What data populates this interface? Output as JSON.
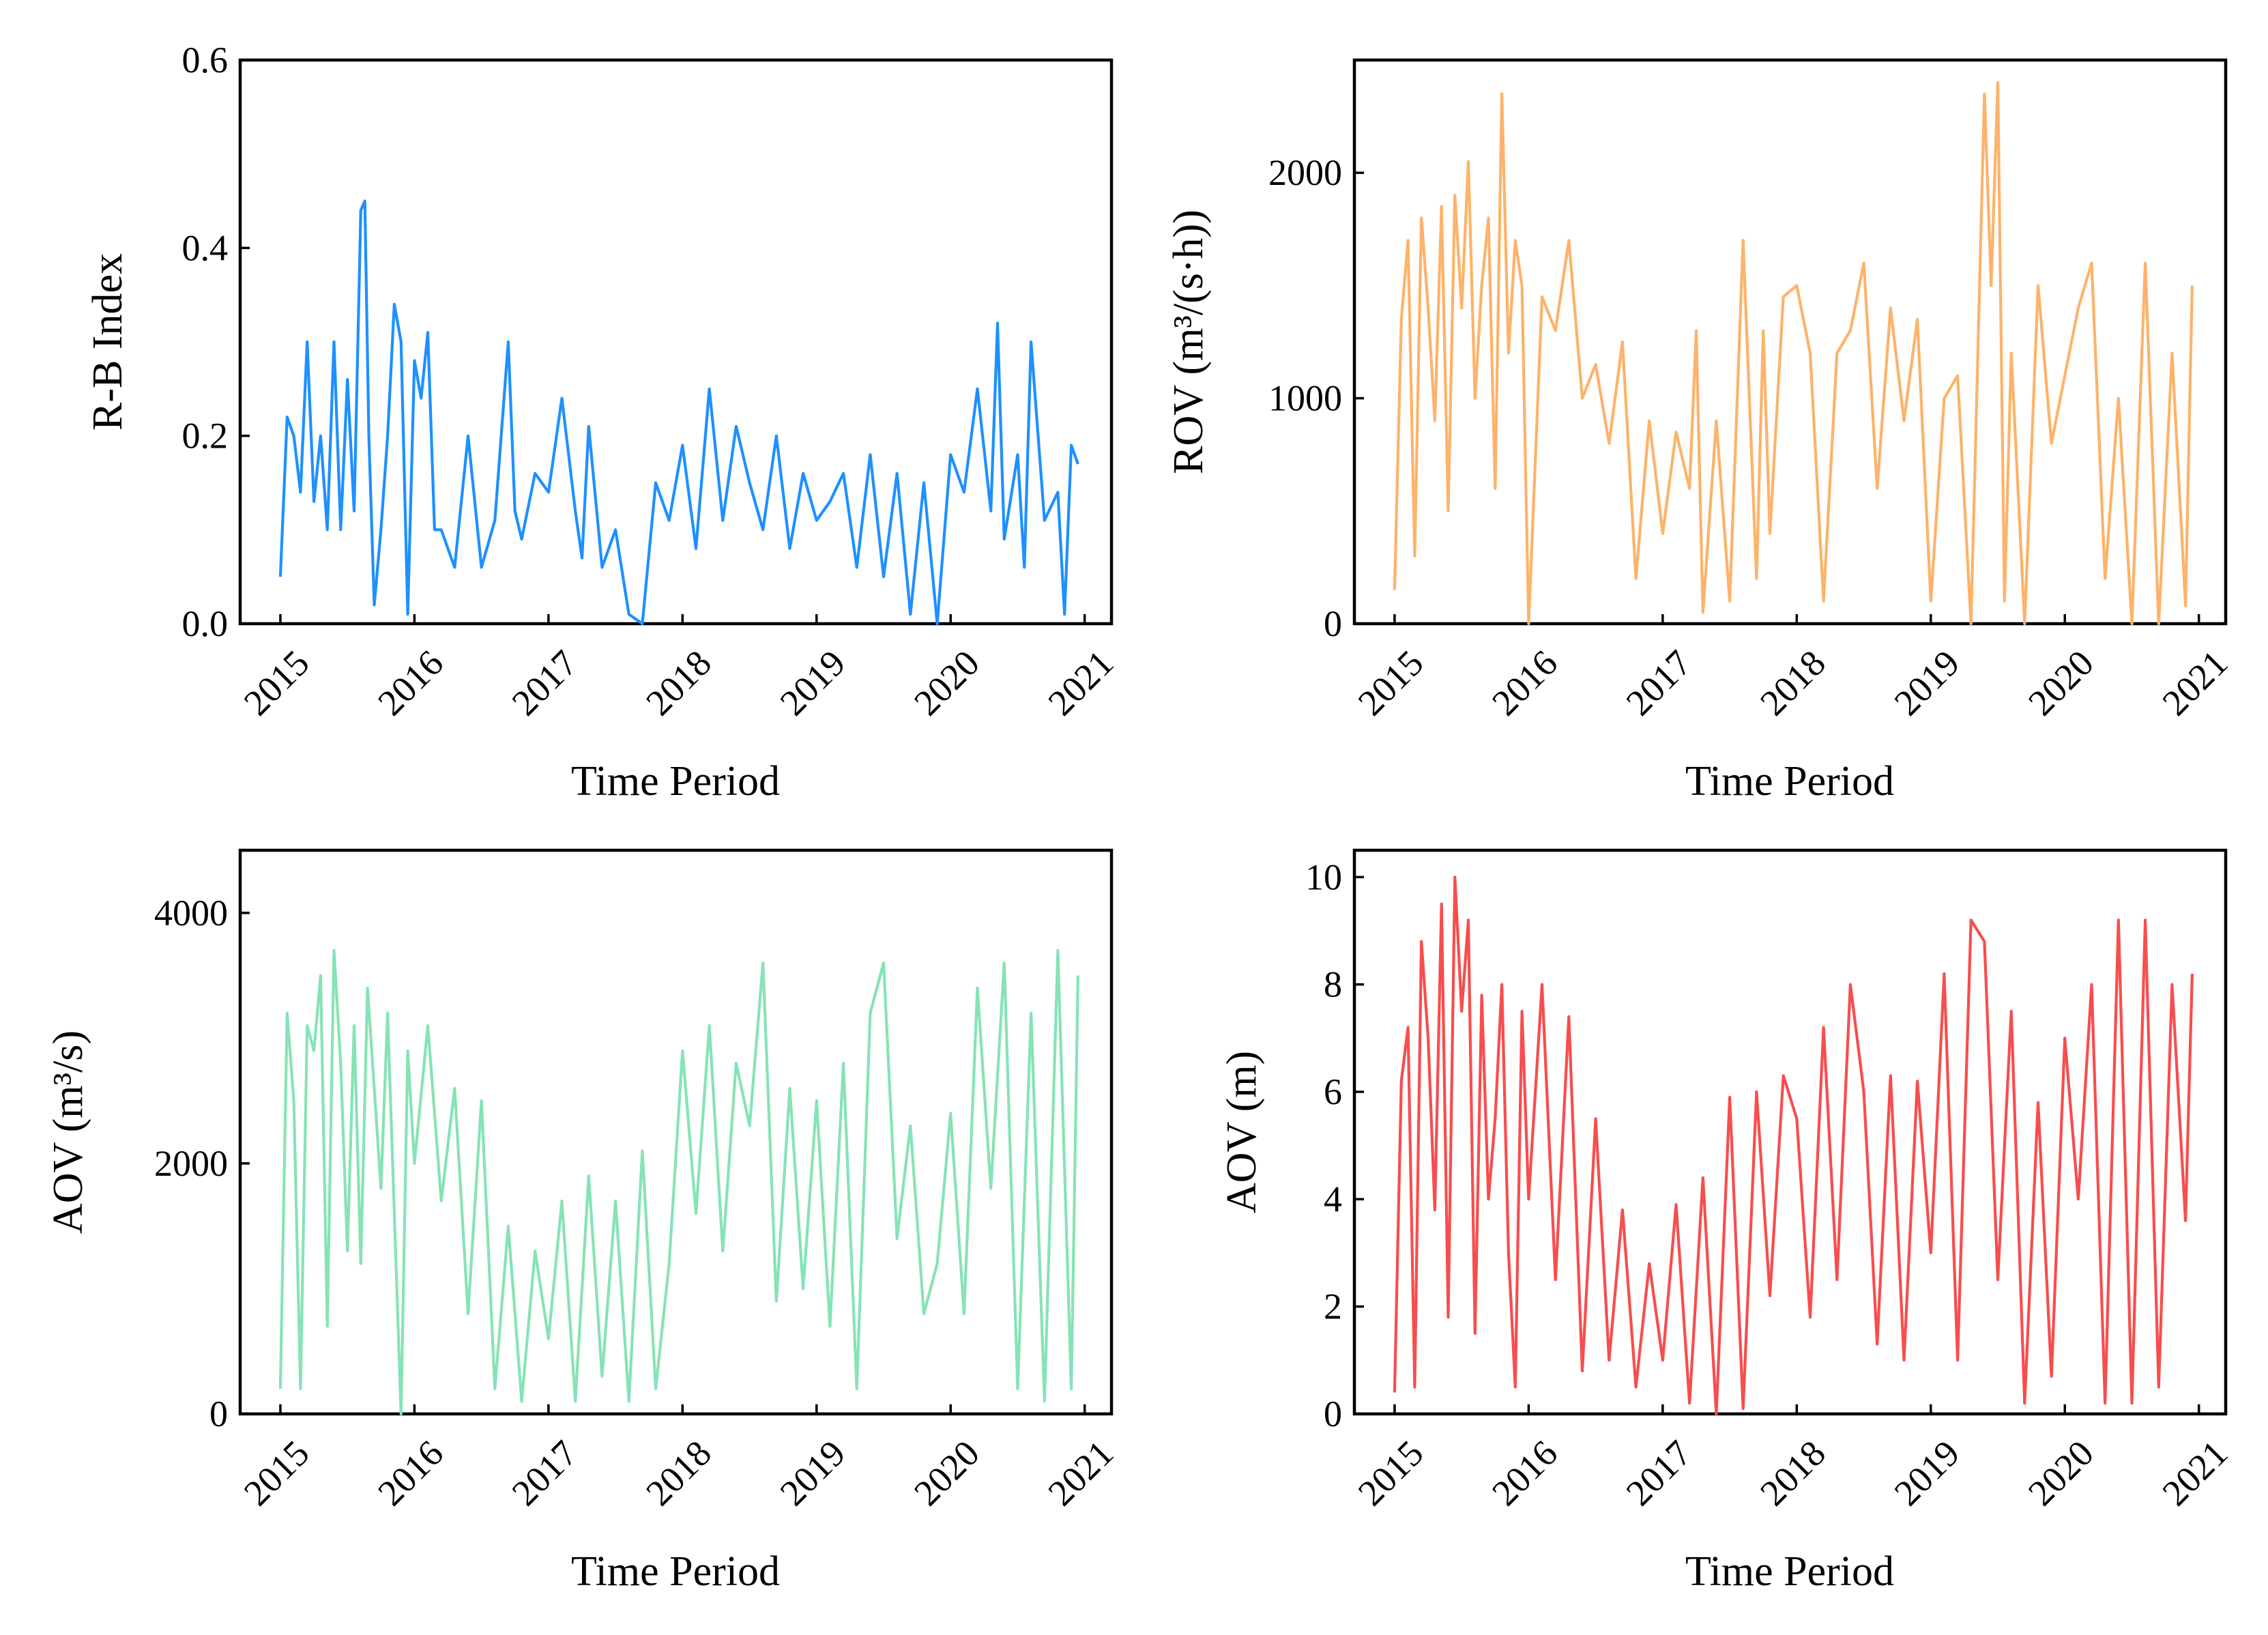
{
  "chart_data": [
    {
      "type": "line",
      "ylabel": "R-B Index",
      "xlabel": "Time Period",
      "ylim": [
        0,
        0.6
      ],
      "y_ticks": [
        "0.0",
        "0.2",
        "0.4",
        "0.6"
      ],
      "x_ticks": [
        "2015",
        "2016",
        "2017",
        "2018",
        "2019",
        "2020",
        "2021"
      ],
      "color": "#1E90FF",
      "series": [
        {
          "x": [
            2015.0,
            2015.05,
            2015.1,
            2015.15,
            2015.2,
            2015.25,
            2015.3,
            2015.35,
            2015.4,
            2015.45,
            2015.5,
            2015.55,
            2015.6,
            2015.63,
            2015.66,
            2015.7,
            2015.75,
            2015.8,
            2015.85,
            2015.9,
            2015.95,
            2016.0,
            2016.05,
            2016.1,
            2016.15,
            2016.2,
            2016.3,
            2016.4,
            2016.5,
            2016.6,
            2016.7,
            2016.75,
            2016.8,
            2016.9,
            2017.0,
            2017.1,
            2017.2,
            2017.25,
            2017.3,
            2017.4,
            2017.5,
            2017.6,
            2017.7,
            2017.8,
            2017.9,
            2018.0,
            2018.1,
            2018.2,
            2018.3,
            2018.4,
            2018.5,
            2018.6,
            2018.7,
            2018.8,
            2018.9,
            2019.0,
            2019.1,
            2019.2,
            2019.3,
            2019.4,
            2019.5,
            2019.6,
            2019.7,
            2019.8,
            2019.9,
            2020.0,
            2020.1,
            2020.2,
            2020.3,
            2020.35,
            2020.4,
            2020.5,
            2020.55,
            2020.6,
            2020.7,
            2020.8,
            2020.85,
            2020.9,
            2020.95
          ],
          "y": [
            0.05,
            0.22,
            0.2,
            0.14,
            0.3,
            0.13,
            0.2,
            0.1,
            0.3,
            0.1,
            0.26,
            0.12,
            0.44,
            0.45,
            0.2,
            0.02,
            0.1,
            0.2,
            0.34,
            0.3,
            0.01,
            0.28,
            0.24,
            0.31,
            0.1,
            0.1,
            0.06,
            0.2,
            0.06,
            0.11,
            0.3,
            0.12,
            0.09,
            0.16,
            0.14,
            0.24,
            0.12,
            0.07,
            0.21,
            0.06,
            0.1,
            0.01,
            0.0,
            0.15,
            0.11,
            0.19,
            0.08,
            0.25,
            0.11,
            0.21,
            0.15,
            0.1,
            0.2,
            0.08,
            0.16,
            0.11,
            0.13,
            0.16,
            0.06,
            0.18,
            0.05,
            0.16,
            0.01,
            0.15,
            0.0,
            0.18,
            0.14,
            0.25,
            0.12,
            0.32,
            0.09,
            0.18,
            0.06,
            0.3,
            0.11,
            0.14,
            0.01,
            0.19,
            0.17
          ]
        }
      ]
    },
    {
      "type": "line",
      "ylabel": "ROV (m³/(s·h))",
      "xlabel": "Time Period",
      "ylim": [
        0,
        2500
      ],
      "y_ticks": [
        "0",
        "1000",
        "2000"
      ],
      "x_ticks": [
        "2015",
        "2016",
        "2017",
        "2018",
        "2019",
        "2020",
        "2021"
      ],
      "color": "#FDB36A",
      "series": [
        {
          "x": [
            2015.0,
            2015.05,
            2015.1,
            2015.15,
            2015.2,
            2015.25,
            2015.3,
            2015.35,
            2015.4,
            2015.45,
            2015.5,
            2015.55,
            2015.6,
            2015.65,
            2015.7,
            2015.75,
            2015.8,
            2015.85,
            2015.9,
            2015.95,
            2016.0,
            2016.1,
            2016.2,
            2016.3,
            2016.4,
            2016.5,
            2016.6,
            2016.7,
            2016.8,
            2016.9,
            2017.0,
            2017.1,
            2017.2,
            2017.25,
            2017.3,
            2017.4,
            2017.5,
            2017.6,
            2017.7,
            2017.75,
            2017.8,
            2017.9,
            2018.0,
            2018.1,
            2018.2,
            2018.3,
            2018.4,
            2018.5,
            2018.6,
            2018.7,
            2018.8,
            2018.9,
            2019.0,
            2019.1,
            2019.2,
            2019.3,
            2019.4,
            2019.45,
            2019.5,
            2019.55,
            2019.6,
            2019.7,
            2019.8,
            2019.9,
            2020.0,
            2020.1,
            2020.2,
            2020.3,
            2020.4,
            2020.5,
            2020.6,
            2020.7,
            2020.8,
            2020.9,
            2020.95
          ],
          "y": [
            150,
            1350,
            1700,
            300,
            1800,
            1400,
            900,
            1850,
            500,
            1900,
            1400,
            2050,
            1000,
            1500,
            1800,
            600,
            2350,
            1200,
            1700,
            1500,
            0,
            1450,
            1300,
            1700,
            1000,
            1150,
            800,
            1250,
            200,
            900,
            400,
            850,
            600,
            1300,
            50,
            900,
            100,
            1700,
            200,
            1300,
            400,
            1450,
            1500,
            1200,
            100,
            1200,
            1300,
            1600,
            600,
            1400,
            900,
            1350,
            100,
            1000,
            1100,
            0,
            2350,
            1500,
            2400,
            100,
            1200,
            0,
            1500,
            800,
            1100,
            1400,
            1600,
            200,
            1000,
            0,
            1600,
            0,
            1200,
            80,
            1500
          ]
        }
      ]
    },
    {
      "type": "line",
      "ylabel": "AOV (m³/s)",
      "xlabel": "Time Period",
      "ylim": [
        0,
        4500
      ],
      "y_ticks": [
        "0",
        "2000",
        "4000"
      ],
      "x_ticks": [
        "2015",
        "2016",
        "2017",
        "2018",
        "2019",
        "2020",
        "2021"
      ],
      "color": "#86E3B5",
      "series": [
        {
          "x": [
            2015.0,
            2015.05,
            2015.1,
            2015.15,
            2015.2,
            2015.25,
            2015.3,
            2015.35,
            2015.4,
            2015.45,
            2015.5,
            2015.55,
            2015.6,
            2015.65,
            2015.7,
            2015.75,
            2015.8,
            2015.85,
            2015.9,
            2015.95,
            2016.0,
            2016.1,
            2016.2,
            2016.3,
            2016.4,
            2016.5,
            2016.6,
            2016.7,
            2016.8,
            2016.9,
            2017.0,
            2017.1,
            2017.2,
            2017.3,
            2017.4,
            2017.5,
            2017.6,
            2017.7,
            2017.8,
            2017.9,
            2018.0,
            2018.1,
            2018.2,
            2018.3,
            2018.4,
            2018.5,
            2018.6,
            2018.7,
            2018.8,
            2018.9,
            2019.0,
            2019.1,
            2019.2,
            2019.3,
            2019.4,
            2019.5,
            2019.6,
            2019.7,
            2019.8,
            2019.9,
            2020.0,
            2020.1,
            2020.2,
            2020.3,
            2020.4,
            2020.5,
            2020.6,
            2020.7,
            2020.8,
            2020.9,
            2020.95
          ],
          "y": [
            200,
            3200,
            2500,
            200,
            3100,
            2900,
            3500,
            700,
            3700,
            2800,
            1300,
            3100,
            1200,
            3400,
            2600,
            1800,
            3200,
            1600,
            0,
            2900,
            2000,
            3100,
            1700,
            2600,
            800,
            2500,
            200,
            1500,
            100,
            1300,
            600,
            1700,
            100,
            1900,
            300,
            1700,
            100,
            2100,
            200,
            1200,
            2900,
            1600,
            3100,
            1300,
            2800,
            2300,
            3600,
            900,
            2600,
            1000,
            2500,
            700,
            2800,
            200,
            3200,
            3600,
            1400,
            2300,
            800,
            1200,
            2400,
            800,
            3400,
            1800,
            3600,
            200,
            3200,
            100,
            3700,
            200,
            3500
          ]
        }
      ]
    },
    {
      "type": "line",
      "ylabel": "AOV (m)",
      "xlabel": "Time Period",
      "ylim": [
        0,
        10.5
      ],
      "y_ticks": [
        "0",
        "2",
        "4",
        "6",
        "8",
        "10"
      ],
      "x_ticks": [
        "2015",
        "2016",
        "2017",
        "2018",
        "2019",
        "2020",
        "2021"
      ],
      "color": "#F84D4D",
      "series": [
        {
          "x": [
            2015.0,
            2015.05,
            2015.1,
            2015.15,
            2015.2,
            2015.25,
            2015.3,
            2015.35,
            2015.4,
            2015.45,
            2015.5,
            2015.55,
            2015.6,
            2015.65,
            2015.7,
            2015.75,
            2015.8,
            2015.85,
            2015.9,
            2015.95,
            2016.0,
            2016.1,
            2016.2,
            2016.3,
            2016.4,
            2016.5,
            2016.6,
            2016.7,
            2016.8,
            2016.9,
            2017.0,
            2017.1,
            2017.2,
            2017.3,
            2017.4,
            2017.5,
            2017.6,
            2017.7,
            2017.8,
            2017.9,
            2018.0,
            2018.1,
            2018.2,
            2018.3,
            2018.4,
            2018.5,
            2018.6,
            2018.7,
            2018.8,
            2018.9,
            2019.0,
            2019.1,
            2019.2,
            2019.3,
            2019.4,
            2019.5,
            2019.6,
            2019.7,
            2019.8,
            2019.9,
            2020.0,
            2020.1,
            2020.2,
            2020.3,
            2020.4,
            2020.5,
            2020.6,
            2020.7,
            2020.8,
            2020.9,
            2020.95
          ],
          "y": [
            0.4,
            6.2,
            7.2,
            0.5,
            8.8,
            7.0,
            3.8,
            9.5,
            1.8,
            10.0,
            7.5,
            9.2,
            1.5,
            7.8,
            4.0,
            5.5,
            8.0,
            3.0,
            0.5,
            7.5,
            4.0,
            8.0,
            2.5,
            7.4,
            0.8,
            5.5,
            1.0,
            3.8,
            0.5,
            2.8,
            1.0,
            3.9,
            0.2,
            4.4,
            0.0,
            5.9,
            0.1,
            6.0,
            2.2,
            6.3,
            5.5,
            1.8,
            7.2,
            2.5,
            8.0,
            6.0,
            1.3,
            6.3,
            1.0,
            6.2,
            3.0,
            8.2,
            1.0,
            9.2,
            8.8,
            2.5,
            7.5,
            0.2,
            5.8,
            0.7,
            7.0,
            4.0,
            8.0,
            0.2,
            9.2,
            0.2,
            9.2,
            0.5,
            8.0,
            3.6,
            8.2
          ]
        }
      ]
    }
  ]
}
